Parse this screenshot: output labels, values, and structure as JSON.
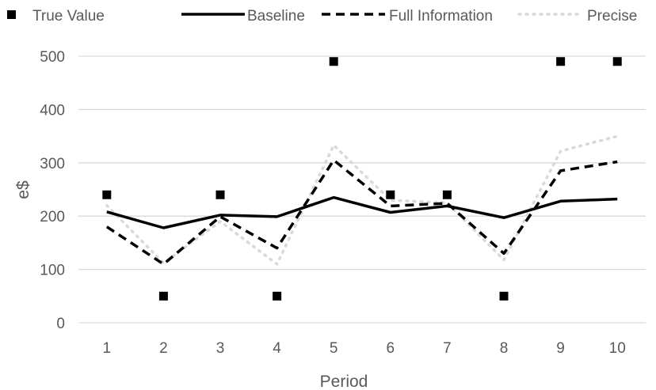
{
  "chart_data": {
    "type": "line",
    "xlabel": "Period",
    "ylabel": "e$",
    "categories": [
      "1",
      "2",
      "3",
      "4",
      "5",
      "6",
      "7",
      "8",
      "9",
      "10"
    ],
    "ylim": [
      0,
      500
    ],
    "yticks": [
      0,
      100,
      200,
      300,
      400,
      500
    ],
    "grid": true,
    "legend_position": "top",
    "series": [
      {
        "name": "True Value",
        "style": "markers",
        "color": "#000000",
        "values": [
          240,
          50,
          240,
          50,
          490,
          240,
          240,
          50,
          490,
          490
        ]
      },
      {
        "name": "Baseline",
        "style": "solid",
        "color": "#000000",
        "values": [
          208,
          178,
          202,
          199,
          235,
          207,
          219,
          197,
          228,
          232
        ]
      },
      {
        "name": "Full Information",
        "style": "dashed",
        "color": "#000000",
        "values": [
          180,
          110,
          199,
          140,
          305,
          219,
          224,
          130,
          285,
          302
        ]
      },
      {
        "name": "Precise",
        "style": "dotted",
        "color": "#d9d9d9",
        "values": [
          220,
          112,
          190,
          110,
          333,
          230,
          225,
          118,
          322,
          350
        ]
      }
    ]
  }
}
